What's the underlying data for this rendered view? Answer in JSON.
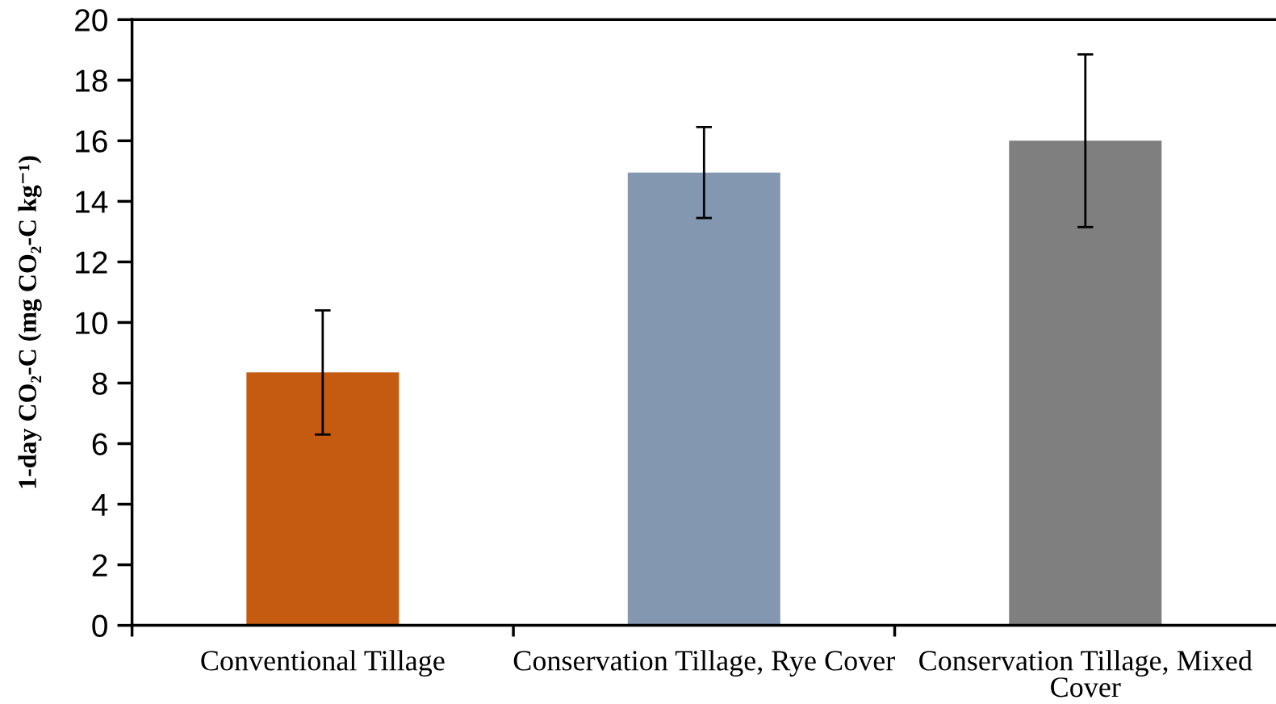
{
  "chart_data": {
    "type": "bar",
    "ylabel": "1-day CO₂-C (mg CO₂-C kg⁻¹)",
    "categories": [
      "Conventional Tillage",
      "Conservation Tillage, Rye Cover",
      "Conservation Tillage, Mixed Cover"
    ],
    "values": [
      8.35,
      14.95,
      16.0
    ],
    "colors": [
      "#c55a11",
      "#8497b0",
      "#7f7f7f"
    ],
    "errors": [
      2.05,
      1.5,
      2.85
    ],
    "ylim": [
      0,
      20
    ],
    "yticks": [
      0,
      2,
      4,
      6,
      8,
      10,
      12,
      14,
      16,
      18,
      20
    ]
  }
}
